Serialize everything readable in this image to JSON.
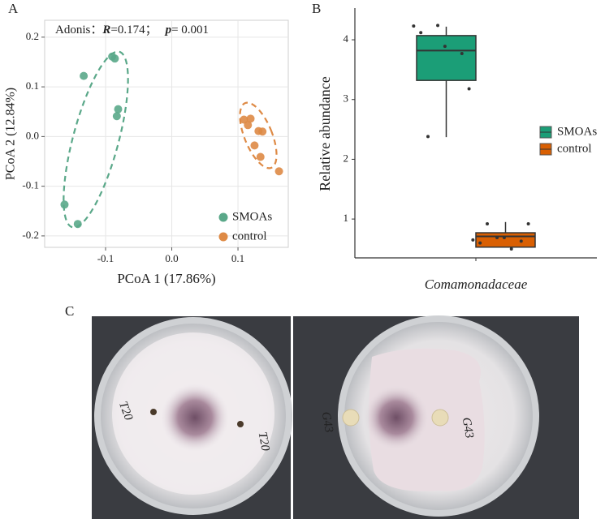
{
  "panel_labels": [
    "A",
    "B",
    "C"
  ],
  "chart_data": [
    {
      "type": "scatter",
      "annotation": [
        "Adonis：",
        "R",
        "=0.174；",
        "p",
        "= 0.001"
      ],
      "x_label": "PCoA 1 (17.86%)",
      "y_label": "PCoA 2 (12.84%)",
      "xlim": [
        -0.192,
        0.176
      ],
      "ylim": [
        -0.223,
        0.234
      ],
      "xticks": [
        {
          "value": -0.1,
          "label": "-0.1"
        },
        {
          "value": 0,
          "label": "0.0"
        },
        {
          "value": 0.1,
          "label": "0.1"
        }
      ],
      "yticks": [
        {
          "value": -0.2,
          "label": "-0.2"
        },
        {
          "value": -0.1,
          "label": "-0.1"
        },
        {
          "value": 0,
          "label": "0.0"
        },
        {
          "value": 0.1,
          "label": "0.1"
        },
        {
          "value": 0.2,
          "label": "0.2"
        }
      ],
      "grid": true,
      "legend": "bottom-right",
      "series": [
        {
          "name": "SMOAs",
          "color": "#5aa889",
          "x": [
            -0.09,
            -0.086,
            -0.133,
            -0.081,
            -0.083,
            -0.162,
            -0.142
          ],
          "y": [
            0.161,
            0.157,
            0.122,
            0.055,
            0.041,
            -0.137,
            -0.176
          ]
        },
        {
          "name": "control",
          "color": "#de8a45",
          "x": [
            0.109,
            0.119,
            0.115,
            0.131,
            0.137,
            0.125,
            0.134,
            0.162
          ],
          "y": [
            0.034,
            0.036,
            0.023,
            0.011,
            0.01,
            -0.018,
            -0.041,
            -0.07
          ]
        }
      ]
    },
    {
      "type": "box",
      "categories": [
        "Comamonadaceae"
      ],
      "y_label": "Relative abundance",
      "ylim": [
        0.35,
        4.53
      ],
      "yticks": [
        1,
        2,
        3,
        4
      ],
      "legend": "right",
      "series": [
        {
          "name": "SMOAs",
          "color": "#1b9e77",
          "min": 2.37,
          "q1": 3.32,
          "median": 3.82,
          "q3": 4.07,
          "max": 4.22,
          "points": [
            4.23,
            4.24,
            3.77,
            4.12,
            3.89,
            3.18,
            2.38
          ]
        },
        {
          "name": "control",
          "color": "#d95f02",
          "min": 0.53,
          "q1": 0.53,
          "median": 0.71,
          "q3": 0.77,
          "max": 0.95,
          "points": [
            0.65,
            0.69,
            0.63,
            0.6,
            0.69,
            0.92,
            0.92,
            0.5
          ]
        }
      ]
    }
  ],
  "photo_texts": [
    "T20",
    "T20",
    "G43",
    "G43"
  ]
}
